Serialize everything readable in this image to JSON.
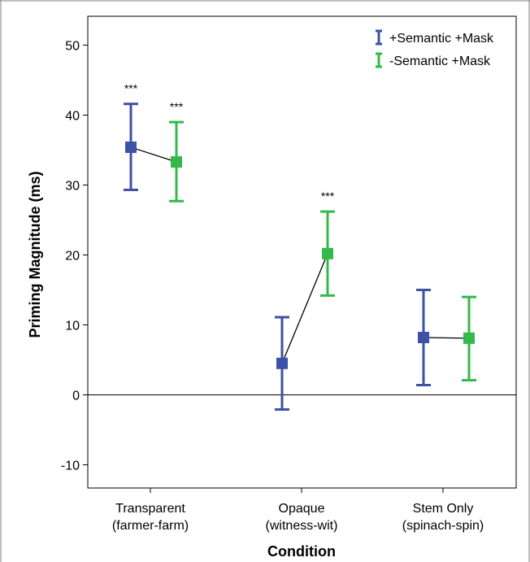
{
  "chart_data": {
    "type": "scatter",
    "xlabel": "Condition",
    "ylabel": "Priming Magnitude (ms)",
    "ylim": [
      -13.5,
      56
    ],
    "yticks": [
      -10,
      0,
      10,
      20,
      30,
      40,
      50
    ],
    "categories": [
      {
        "line1": "Transparent",
        "line2": "(farmer-farm)"
      },
      {
        "line1": "Opaque",
        "line2": "(witness-wit)"
      },
      {
        "line1": "Stem Only",
        "line2": "(spinach-spin)"
      }
    ],
    "reference_line": 0,
    "legend_position": "top-right",
    "series": [
      {
        "name": "+Semantic +Mask",
        "color": "#3d51a6",
        "values": [
          35.4,
          4.5,
          8.2
        ],
        "error_low": [
          29.3,
          -2.1,
          1.4
        ],
        "error_high": [
          41.6,
          11.1,
          15.0
        ],
        "significance": [
          "***",
          "",
          ""
        ]
      },
      {
        "name": "-Semantic +Mask",
        "color": "#35b84a",
        "values": [
          33.3,
          20.2,
          8.1
        ],
        "error_low": [
          27.7,
          14.2,
          2.1
        ],
        "error_high": [
          39.0,
          26.2,
          14.0
        ],
        "significance": [
          "***",
          "***",
          ""
        ]
      }
    ],
    "connector_color": "#000000",
    "grid": false
  }
}
